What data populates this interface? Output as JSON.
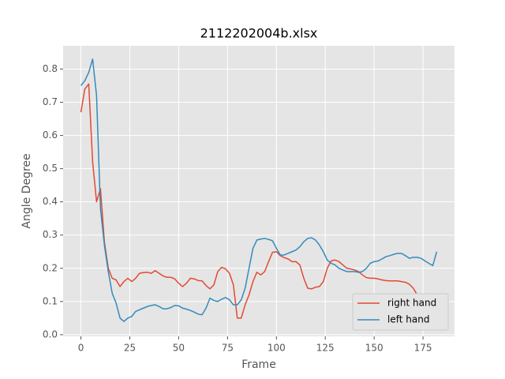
{
  "chart_data": {
    "type": "line",
    "title": "2112202004b.xlsx",
    "xlabel": "Frame",
    "ylabel": "Angle Degree",
    "x": [
      0,
      2,
      4,
      6,
      8,
      10,
      12,
      14,
      16,
      18,
      20,
      22,
      24,
      26,
      28,
      30,
      32,
      34,
      36,
      38,
      40,
      42,
      44,
      46,
      48,
      50,
      52,
      54,
      56,
      58,
      60,
      62,
      64,
      66,
      68,
      70,
      72,
      74,
      76,
      78,
      80,
      82,
      84,
      86,
      88,
      90,
      92,
      94,
      96,
      98,
      100,
      102,
      104,
      106,
      108,
      110,
      112,
      114,
      116,
      118,
      120,
      122,
      124,
      126,
      128,
      130,
      132,
      134,
      136,
      138,
      140,
      142,
      144,
      146,
      148,
      150,
      152,
      154,
      156,
      158,
      160,
      162,
      164,
      166,
      168,
      170,
      172,
      174,
      176,
      178,
      180,
      182
    ],
    "series": [
      {
        "name": "right hand",
        "color": "#E24A33",
        "values": [
          0.67,
          0.74,
          0.755,
          0.52,
          0.4,
          0.44,
          0.28,
          0.2,
          0.17,
          0.165,
          0.145,
          0.16,
          0.17,
          0.16,
          0.17,
          0.185,
          0.187,
          0.188,
          0.185,
          0.193,
          0.185,
          0.177,
          0.173,
          0.173,
          0.168,
          0.155,
          0.145,
          0.155,
          0.17,
          0.168,
          0.163,
          0.162,
          0.148,
          0.138,
          0.15,
          0.19,
          0.203,
          0.198,
          0.185,
          0.15,
          0.05,
          0.05,
          0.09,
          0.12,
          0.16,
          0.188,
          0.18,
          0.19,
          0.22,
          0.248,
          0.25,
          0.238,
          0.232,
          0.228,
          0.22,
          0.22,
          0.21,
          0.17,
          0.14,
          0.138,
          0.143,
          0.145,
          0.16,
          0.2,
          0.222,
          0.225,
          0.22,
          0.21,
          0.2,
          0.198,
          0.195,
          0.19,
          0.18,
          0.172,
          0.17,
          0.17,
          0.168,
          0.165,
          0.163,
          0.162,
          0.162,
          0.162,
          0.16,
          0.158,
          0.152,
          0.14,
          0.12,
          0.115,
          0.108,
          null,
          null,
          null
        ]
      },
      {
        "name": "left hand",
        "color": "#348ABD",
        "values": [
          0.75,
          0.765,
          0.79,
          0.83,
          0.72,
          0.38,
          0.27,
          0.19,
          0.125,
          0.095,
          0.05,
          0.04,
          0.05,
          0.055,
          0.07,
          0.075,
          0.08,
          0.085,
          0.088,
          0.09,
          0.085,
          0.078,
          0.078,
          0.082,
          0.088,
          0.087,
          0.08,
          0.077,
          0.073,
          0.068,
          0.062,
          0.06,
          0.08,
          0.11,
          0.103,
          0.1,
          0.107,
          0.112,
          0.105,
          0.09,
          0.09,
          0.105,
          0.14,
          0.2,
          0.26,
          0.285,
          0.288,
          0.29,
          0.287,
          0.283,
          0.26,
          0.24,
          0.24,
          0.245,
          0.25,
          0.255,
          0.265,
          0.28,
          0.29,
          0.292,
          0.285,
          0.27,
          0.25,
          0.225,
          0.215,
          0.21,
          0.2,
          0.195,
          0.19,
          0.19,
          0.19,
          0.188,
          0.19,
          0.2,
          0.215,
          0.22,
          0.222,
          0.228,
          0.235,
          0.238,
          0.242,
          0.245,
          0.245,
          0.238,
          0.23,
          0.233,
          0.233,
          0.23,
          0.222,
          0.215,
          0.208,
          0.25
        ]
      }
    ],
    "xlim": [
      -9.1,
      191.1
    ],
    "ylim": [
      -0.005,
      0.87
    ],
    "xticks": [
      0,
      25,
      50,
      75,
      100,
      125,
      150,
      175
    ],
    "yticks": [
      {
        "value": 0,
        "label": "0.0"
      },
      0.1,
      0.2,
      0.3,
      0.4,
      0.5,
      0.6,
      0.7,
      0.8
    ],
    "grid": true,
    "legend": "lower right"
  }
}
